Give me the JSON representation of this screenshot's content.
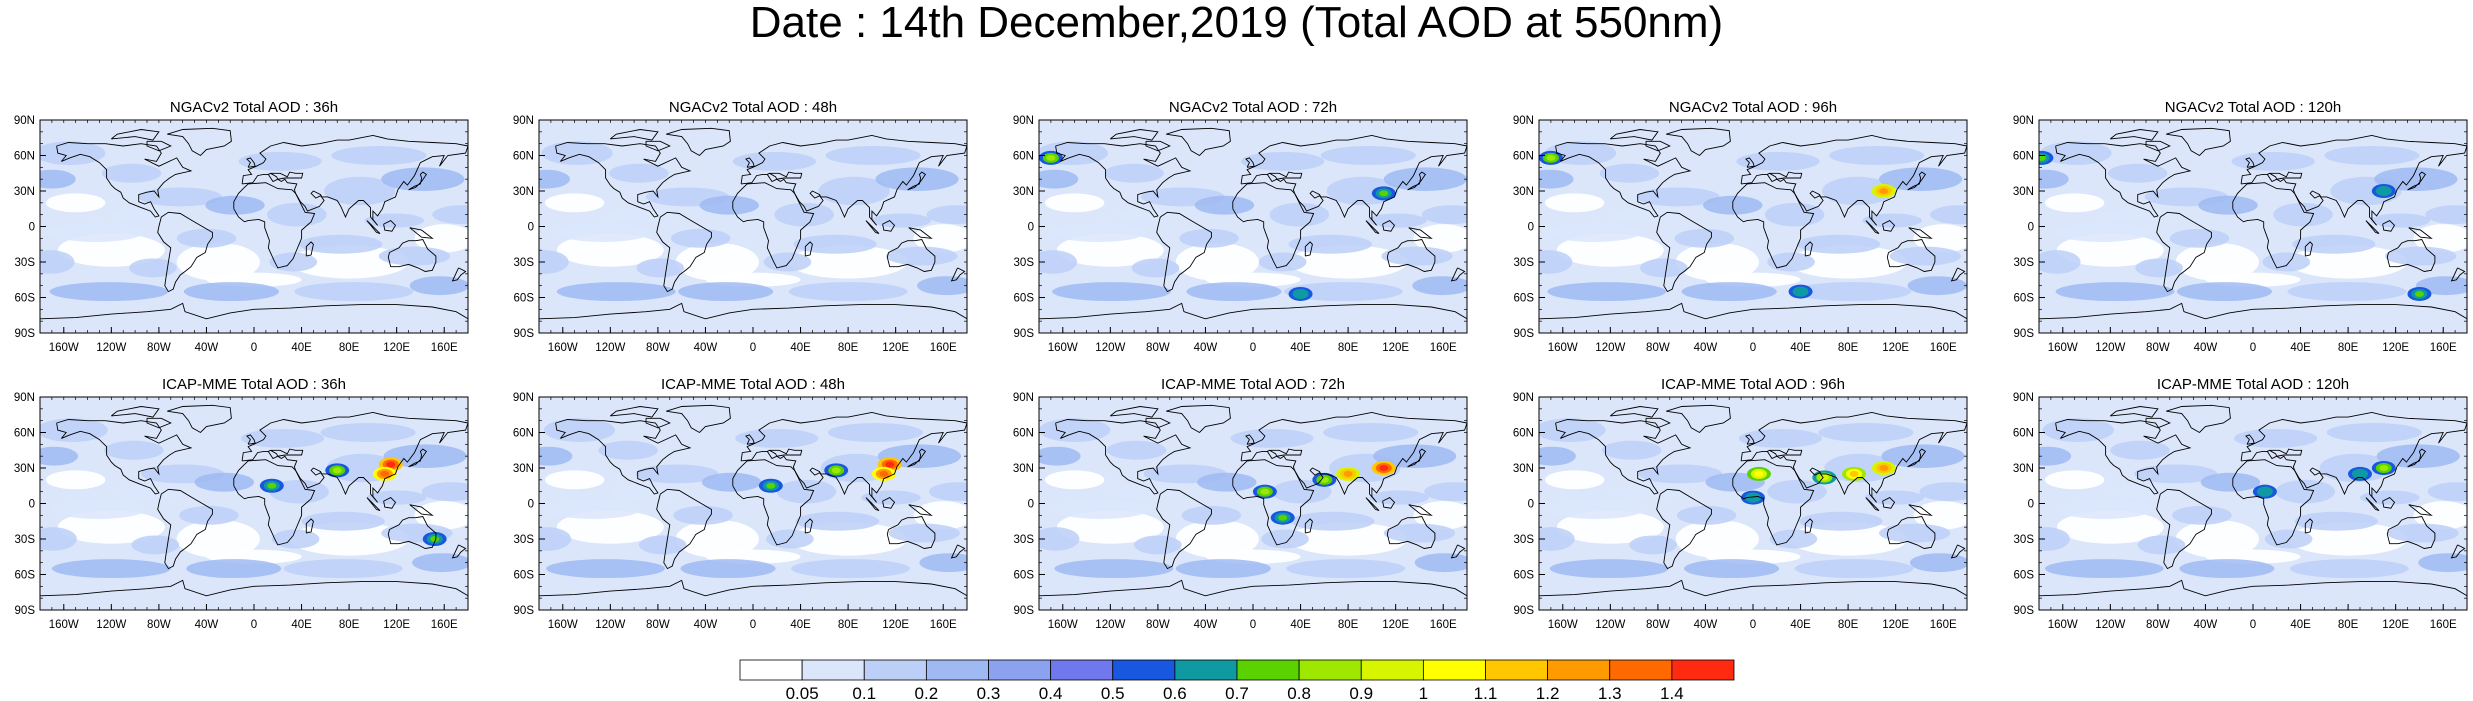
{
  "title": "Date : 14th December,2019 (Total AOD at 550nm)",
  "rows": [
    {
      "model": "NGACv2",
      "panels": [
        {
          "title": "NGACv2 Total AOD : 36h",
          "hotspots": []
        },
        {
          "title": "NGACv2 Total AOD : 48h",
          "hotspots": []
        },
        {
          "title": "NGACv2 Total AOD : 72h",
          "hotspots": [
            [
              -170,
              58,
              0.8
            ],
            [
              110,
              28,
              0.7
            ],
            [
              40,
              -57,
              0.6
            ]
          ]
        },
        {
          "title": "NGACv2 Total AOD : 96h",
          "hotspots": [
            [
              -170,
              58,
              0.8
            ],
            [
              110,
              30,
              1.2
            ],
            [
              40,
              -55,
              0.6
            ]
          ]
        },
        {
          "title": "NGACv2 Total AOD : 120h",
          "hotspots": [
            [
              -178,
              58,
              0.7
            ],
            [
              110,
              30,
              0.6
            ],
            [
              140,
              -57,
              0.7
            ]
          ]
        }
      ]
    },
    {
      "model": "ICAP-MME",
      "panels": [
        {
          "title": "ICAP-MME Total AOD : 36h",
          "hotspots": [
            [
              115,
              33,
              1.4
            ],
            [
              110,
              25,
              1.3
            ],
            [
              70,
              28,
              0.8
            ],
            [
              15,
              15,
              0.7
            ],
            [
              152,
              -30,
              0.7
            ]
          ]
        },
        {
          "title": "ICAP-MME Total AOD : 48h",
          "hotspots": [
            [
              115,
              33,
              1.4
            ],
            [
              110,
              25,
              1.3
            ],
            [
              70,
              28,
              0.8
            ],
            [
              15,
              15,
              0.7
            ]
          ]
        },
        {
          "title": "ICAP-MME Total AOD : 72h",
          "hotspots": [
            [
              110,
              30,
              1.4
            ],
            [
              80,
              25,
              1.2
            ],
            [
              60,
              20,
              0.8
            ],
            [
              10,
              10,
              0.8
            ],
            [
              25,
              -12,
              0.7
            ]
          ]
        },
        {
          "title": "ICAP-MME Total AOD : 96h",
          "hotspots": [
            [
              110,
              30,
              1.2
            ],
            [
              85,
              25,
              1.1
            ],
            [
              60,
              22,
              0.9
            ],
            [
              5,
              25,
              1.0
            ],
            [
              0,
              5,
              0.6
            ]
          ]
        },
        {
          "title": "ICAP-MME Total AOD : 120h",
          "hotspots": [
            [
              110,
              30,
              0.8
            ],
            [
              90,
              25,
              0.6
            ],
            [
              10,
              10,
              0.6
            ]
          ]
        }
      ]
    }
  ],
  "axes": {
    "lat_ticks": [
      "90N",
      "60N",
      "30N",
      "0",
      "30S",
      "60S",
      "90S"
    ],
    "lon_ticks": [
      "160W",
      "120W",
      "80W",
      "40W",
      "0",
      "40E",
      "80E",
      "120E",
      "160E"
    ]
  },
  "colorbar": {
    "labels": [
      "0.05",
      "0.1",
      "0.2",
      "0.3",
      "0.4",
      "0.5",
      "0.6",
      "0.7",
      "0.8",
      "0.9",
      "1",
      "1.1",
      "1.2",
      "1.3",
      "1.4"
    ],
    "colors": [
      "#ffffff",
      "#dbe6fb",
      "#bccff7",
      "#9fbaf3",
      "#8aa2ef",
      "#6f78ec",
      "#1858e0",
      "#0f9aa2",
      "#5ad200",
      "#9ee800",
      "#d8f500",
      "#ffff00",
      "#ffc700",
      "#ff9a00",
      "#ff6a00",
      "#ff2a10"
    ]
  },
  "map_colors": {
    "ocean_low": "#ffffff",
    "land_line": "#000000"
  }
}
